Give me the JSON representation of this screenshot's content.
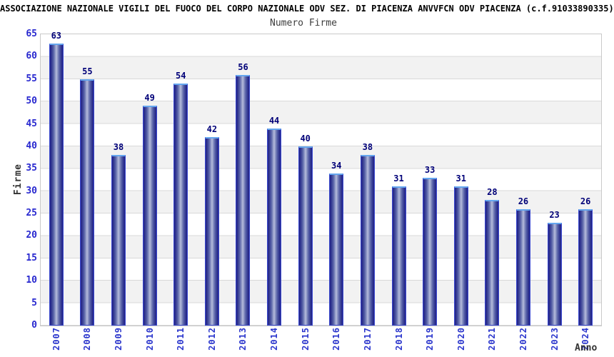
{
  "chart_data": {
    "type": "bar",
    "title": "ASSOCIAZIONE NAZIONALE VIGILI DEL FUOCO DEL CORPO NAZIONALE ODV SEZ. DI PIACENZA ANVVFCN ODV PIACENZA (c.f.91033890335)",
    "subtitle": "Numero Firme",
    "xlabel": "Anno",
    "ylabel": "Firme",
    "categories": [
      "2007",
      "2008",
      "2009",
      "2010",
      "2011",
      "2012",
      "2013",
      "2014",
      "2015",
      "2016",
      "2017",
      "2018",
      "2019",
      "2020",
      "2021",
      "2022",
      "2023",
      "2024"
    ],
    "values": [
      63,
      55,
      38,
      49,
      54,
      42,
      56,
      44,
      40,
      34,
      38,
      31,
      33,
      31,
      28,
      26,
      23,
      26
    ],
    "ylim": [
      0,
      65
    ],
    "yticks": [
      0,
      5,
      10,
      15,
      20,
      25,
      30,
      35,
      40,
      45,
      50,
      55,
      60,
      65
    ],
    "grid": "horizontal gridlines every 5, alternating white/gray 5-unit bands",
    "legend": "none",
    "colors": {
      "bar_edge": "#232285",
      "bar_center": "#b8bedd",
      "bar_outline": "#3a49d0",
      "bar_top_highlight": "#64a6ef",
      "axis_tick_label": "#2828cf",
      "value_label": "#000078",
      "gridline": "#d9d9d9",
      "band_gray": "#f2f2f2",
      "title_color": "#000000",
      "axis_title_color": "#333333"
    }
  }
}
